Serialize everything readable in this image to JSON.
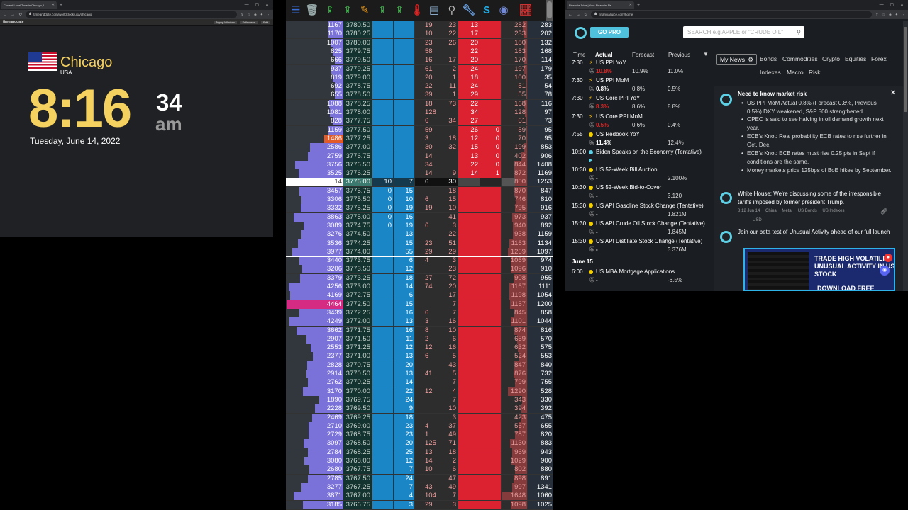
{
  "clock_window": {
    "tab_title": "Current Local Time in Chicago, U",
    "url": "timeanddate.com/worldclock/usa/chicago",
    "site": "timeanddate",
    "toolbar_buttons": [
      "Popup Window",
      "Fullscreen",
      "Edit"
    ],
    "city": "Chicago",
    "country": "USA",
    "time_hm": "8:16",
    "time_s": "34",
    "ampm": "am",
    "date": "Tuesday, June 14, 2022"
  },
  "ladder": {
    "toolbar_icons": [
      "db-icon",
      "trash-icon",
      "export-icon",
      "export-icon",
      "pen-icon",
      "export-icon",
      "export-icon",
      "thermometer-icon",
      "doc-icon",
      "tag-icon",
      "wrench-icon",
      "s-icon",
      "discord-icon",
      "chart-icon"
    ],
    "rows": [
      {
        "sell": "1167",
        "price": "3780.50",
        "b1": "",
        "b2": "",
        "buy": "19",
        "s_buy": "23",
        "s1": "13",
        "s2": "",
        "vol": "282",
        "tot": "283"
      },
      {
        "sell": "1170",
        "price": "3780.25",
        "b1": "",
        "b2": "",
        "buy": "10",
        "s_buy": "22",
        "s1": "17",
        "s2": "",
        "vol": "233",
        "tot": "202"
      },
      {
        "sell": "1007",
        "price": "3780.00",
        "b1": "",
        "b2": "",
        "buy": "23",
        "s_buy": "26",
        "s1": "20",
        "s2": "",
        "vol": "180",
        "tot": "132"
      },
      {
        "sell": "825",
        "price": "3779.75",
        "b1": "",
        "b2": "",
        "buy": "58",
        "s_buy": "",
        "s1": "22",
        "s2": "",
        "vol": "183",
        "tot": "168"
      },
      {
        "sell": "666",
        "price": "3779.50",
        "b1": "",
        "b2": "",
        "buy": "16",
        "s_buy": "17",
        "s1": "20",
        "s2": "",
        "vol": "170",
        "tot": "114"
      },
      {
        "sell": "937",
        "price": "3779.25",
        "b1": "",
        "b2": "",
        "buy": "61",
        "s_buy": "2",
        "s1": "24",
        "s2": "",
        "vol": "197",
        "tot": "179"
      },
      {
        "sell": "819",
        "price": "3779.00",
        "b1": "",
        "b2": "",
        "buy": "20",
        "s_buy": "1",
        "s1": "18",
        "s2": "",
        "vol": "100",
        "tot": "35"
      },
      {
        "sell": "692",
        "price": "3778.75",
        "b1": "",
        "b2": "",
        "buy": "22",
        "s_buy": "11",
        "s1": "24",
        "s2": "",
        "vol": "51",
        "tot": "54"
      },
      {
        "sell": "655",
        "price": "3778.50",
        "b1": "",
        "b2": "",
        "buy": "39",
        "s_buy": "1",
        "s1": "29",
        "s2": "",
        "vol": "55",
        "tot": "78"
      },
      {
        "sell": "1088",
        "price": "3778.25",
        "b1": "",
        "b2": "",
        "buy": "18",
        "s_buy": "73",
        "s1": "22",
        "s2": "",
        "vol": "168",
        "tot": "116"
      },
      {
        "sell": "1081",
        "price": "3778.00",
        "b1": "",
        "b2": "",
        "buy": "128",
        "s_buy": "",
        "s1": "34",
        "s2": "",
        "vol": "128",
        "tot": "97"
      },
      {
        "sell": "828",
        "price": "3777.75",
        "b1": "",
        "b2": "",
        "buy": "6",
        "s_buy": "34",
        "s1": "27",
        "s2": "",
        "vol": "61",
        "tot": "73"
      },
      {
        "sell": "1159",
        "price": "3777.50",
        "b1": "",
        "b2": "",
        "buy": "59",
        "s_buy": "",
        "s1": "26",
        "s2": "0",
        "vol": "59",
        "tot": "95"
      },
      {
        "sell": "1486",
        "price": "3777.25",
        "b1": "",
        "b2": "",
        "buy": "3",
        "s_buy": "18",
        "s1": "12",
        "s2": "0",
        "vol": "70",
        "tot": "95"
      },
      {
        "sell": "2586",
        "price": "3777.00",
        "b1": "",
        "b2": "",
        "buy": "30",
        "s_buy": "32",
        "s1": "15",
        "s2": "0",
        "vol": "199",
        "tot": "853"
      },
      {
        "sell": "2759",
        "price": "3776.75",
        "b1": "",
        "b2": "",
        "buy": "14",
        "s_buy": "",
        "s1": "13",
        "s2": "0",
        "vol": "402",
        "tot": "906"
      },
      {
        "sell": "3756",
        "price": "3776.50",
        "b1": "",
        "b2": "",
        "buy": "34",
        "s_buy": "",
        "s1": "22",
        "s2": "0",
        "vol": "844",
        "tot": "1408"
      },
      {
        "sell": "3525",
        "price": "3776.25",
        "b1": "",
        "b2": "",
        "buy": "14",
        "s_buy": "9",
        "s1": "14",
        "s2": "1",
        "vol": "872",
        "tot": "1169"
      },
      {
        "sell": "14",
        "price": "3776.00",
        "b1": "10",
        "b2": "7",
        "buy": "6",
        "s_buy": "30",
        "s1": "",
        "s2": "",
        "vol": "800",
        "tot": "1253"
      },
      {
        "sell": "3457",
        "price": "3775.75",
        "b1": "0",
        "b2": "15",
        "buy": "",
        "s_buy": "18",
        "s1": "",
        "s2": "",
        "vol": "870",
        "tot": "847"
      },
      {
        "sell": "3306",
        "price": "3775.50",
        "b1": "0",
        "b2": "10",
        "buy": "6",
        "s_buy": "15",
        "s1": "",
        "s2": "",
        "vol": "746",
        "tot": "810"
      },
      {
        "sell": "3332",
        "price": "3775.25",
        "b1": "0",
        "b2": "19",
        "buy": "19",
        "s_buy": "10",
        "s1": "",
        "s2": "",
        "vol": "795",
        "tot": "916"
      },
      {
        "sell": "3863",
        "price": "3775.00",
        "b1": "0",
        "b2": "16",
        "buy": "",
        "s_buy": "41",
        "s1": "",
        "s2": "",
        "vol": "973",
        "tot": "937"
      },
      {
        "sell": "3089",
        "price": "3774.75",
        "b1": "0",
        "b2": "19",
        "buy": "6",
        "s_buy": "3",
        "s1": "",
        "s2": "",
        "vol": "940",
        "tot": "892"
      },
      {
        "sell": "3276",
        "price": "3774.50",
        "b1": "",
        "b2": "13",
        "buy": "",
        "s_buy": "22",
        "s1": "",
        "s2": "",
        "vol": "938",
        "tot": "1159"
      },
      {
        "sell": "3536",
        "price": "3774.25",
        "b1": "",
        "b2": "15",
        "buy": "23",
        "s_buy": "51",
        "s1": "",
        "s2": "",
        "vol": "1163",
        "tot": "1134"
      },
      {
        "sell": "3977",
        "price": "3774.00",
        "b1": "",
        "b2": "55",
        "buy": "29",
        "s_buy": "29",
        "s1": "",
        "s2": "",
        "vol": "1269",
        "tot": "1097"
      },
      {
        "sell": "3440",
        "price": "3773.75",
        "b1": "",
        "b2": "6",
        "buy": "4",
        "s_buy": "3",
        "s1": "",
        "s2": "",
        "vol": "1069",
        "tot": "974"
      },
      {
        "sell": "3206",
        "price": "3773.50",
        "b1": "",
        "b2": "12",
        "buy": "",
        "s_buy": "23",
        "s1": "",
        "s2": "",
        "vol": "1096",
        "tot": "910"
      },
      {
        "sell": "3379",
        "price": "3773.25",
        "b1": "",
        "b2": "18",
        "buy": "27",
        "s_buy": "72",
        "s1": "",
        "s2": "",
        "vol": "908",
        "tot": "955"
      },
      {
        "sell": "4256",
        "price": "3773.00",
        "b1": "",
        "b2": "14",
        "buy": "74",
        "s_buy": "20",
        "s1": "",
        "s2": "",
        "vol": "1167",
        "tot": "1111"
      },
      {
        "sell": "4169",
        "price": "3772.75",
        "b1": "",
        "b2": "6",
        "buy": "",
        "s_buy": "17",
        "s1": "",
        "s2": "",
        "vol": "1198",
        "tot": "1054"
      },
      {
        "sell": "4464",
        "price": "3772.50",
        "b1": "",
        "b2": "15",
        "buy": "",
        "s_buy": "7",
        "s1": "",
        "s2": "",
        "vol": "1157",
        "tot": "1200"
      },
      {
        "sell": "3439",
        "price": "3772.25",
        "b1": "",
        "b2": "16",
        "buy": "6",
        "s_buy": "7",
        "s1": "",
        "s2": "",
        "vol": "845",
        "tot": "858"
      },
      {
        "sell": "4249",
        "price": "3772.00",
        "b1": "",
        "b2": "13",
        "buy": "3",
        "s_buy": "16",
        "s1": "",
        "s2": "",
        "vol": "1101",
        "tot": "1044"
      },
      {
        "sell": "3662",
        "price": "3771.75",
        "b1": "",
        "b2": "16",
        "buy": "8",
        "s_buy": "10",
        "s1": "",
        "s2": "",
        "vol": "874",
        "tot": "816"
      },
      {
        "sell": "2907",
        "price": "3771.50",
        "b1": "",
        "b2": "11",
        "buy": "2",
        "s_buy": "6",
        "s1": "",
        "s2": "",
        "vol": "659",
        "tot": "570"
      },
      {
        "sell": "2553",
        "price": "3771.25",
        "b1": "",
        "b2": "12",
        "buy": "12",
        "s_buy": "16",
        "s1": "",
        "s2": "",
        "vol": "632",
        "tot": "575"
      },
      {
        "sell": "2377",
        "price": "3771.00",
        "b1": "",
        "b2": "13",
        "buy": "6",
        "s_buy": "5",
        "s1": "",
        "s2": "",
        "vol": "524",
        "tot": "553"
      },
      {
        "sell": "2828",
        "price": "3770.75",
        "b1": "",
        "b2": "20",
        "buy": "",
        "s_buy": "43",
        "s1": "",
        "s2": "",
        "vol": "847",
        "tot": "840"
      },
      {
        "sell": "2914",
        "price": "3770.50",
        "b1": "",
        "b2": "13",
        "buy": "41",
        "s_buy": "5",
        "s1": "",
        "s2": "",
        "vol": "876",
        "tot": "732"
      },
      {
        "sell": "2762",
        "price": "3770.25",
        "b1": "",
        "b2": "14",
        "buy": "",
        "s_buy": "7",
        "s1": "",
        "s2": "",
        "vol": "799",
        "tot": "755"
      },
      {
        "sell": "3170",
        "price": "3770.00",
        "b1": "",
        "b2": "22",
        "buy": "12",
        "s_buy": "4",
        "s1": "",
        "s2": "",
        "vol": "1290",
        "tot": "528"
      },
      {
        "sell": "1890",
        "price": "3769.75",
        "b1": "",
        "b2": "24",
        "buy": "",
        "s_buy": "7",
        "s1": "",
        "s2": "",
        "vol": "343",
        "tot": "330"
      },
      {
        "sell": "2228",
        "price": "3769.50",
        "b1": "",
        "b2": "9",
        "buy": "",
        "s_buy": "10",
        "s1": "",
        "s2": "",
        "vol": "394",
        "tot": "392"
      },
      {
        "sell": "2469",
        "price": "3769.25",
        "b1": "",
        "b2": "18",
        "buy": "",
        "s_buy": "3",
        "s1": "",
        "s2": "",
        "vol": "423",
        "tot": "475"
      },
      {
        "sell": "2710",
        "price": "3769.00",
        "b1": "",
        "b2": "23",
        "buy": "4",
        "s_buy": "37",
        "s1": "",
        "s2": "",
        "vol": "567",
        "tot": "655"
      },
      {
        "sell": "2729",
        "price": "3768.75",
        "b1": "",
        "b2": "23",
        "buy": "1",
        "s_buy": "49",
        "s1": "",
        "s2": "",
        "vol": "787",
        "tot": "820"
      },
      {
        "sell": "3097",
        "price": "3768.50",
        "b1": "",
        "b2": "20",
        "buy": "125",
        "s_buy": "71",
        "s1": "",
        "s2": "",
        "vol": "1130",
        "tot": "883"
      },
      {
        "sell": "2784",
        "price": "3768.25",
        "b1": "",
        "b2": "25",
        "buy": "13",
        "s_buy": "18",
        "s1": "",
        "s2": "",
        "vol": "969",
        "tot": "943"
      },
      {
        "sell": "3080",
        "price": "3768.00",
        "b1": "",
        "b2": "12",
        "buy": "14",
        "s_buy": "2",
        "s1": "",
        "s2": "",
        "vol": "1029",
        "tot": "900"
      },
      {
        "sell": "2680",
        "price": "3767.75",
        "b1": "",
        "b2": "7",
        "buy": "10",
        "s_buy": "6",
        "s1": "",
        "s2": "",
        "vol": "802",
        "tot": "880"
      },
      {
        "sell": "2785",
        "price": "3767.50",
        "b1": "",
        "b2": "24",
        "buy": "",
        "s_buy": "47",
        "s1": "",
        "s2": "",
        "vol": "898",
        "tot": "891"
      },
      {
        "sell": "3277",
        "price": "3767.25",
        "b1": "",
        "b2": "7",
        "buy": "43",
        "s_buy": "49",
        "s1": "",
        "s2": "",
        "vol": "997",
        "tot": "1341"
      },
      {
        "sell": "3871",
        "price": "3767.00",
        "b1": "",
        "b2": "4",
        "buy": "104",
        "s_buy": "7",
        "s1": "",
        "s2": "",
        "vol": "1648",
        "tot": "1060"
      },
      {
        "sell": "3185",
        "price": "3766.75",
        "b1": "",
        "b2": "3",
        "buy": "29",
        "s_buy": "3",
        "s1": "",
        "s2": "",
        "vol": "1098",
        "tot": "1025"
      }
    ]
  },
  "fj_window": {
    "tab_title": "FinancialJuice | Your Financial Ne",
    "url": "financialjuice.com/home",
    "gopro": "GO PRO",
    "search_placeholder": "SEARCH e.g APPLE or \"CRUDE OIL\"",
    "cal_headers": {
      "time": "Time",
      "actual": "Actual",
      "forecast": "Forecast",
      "previous": "Previous"
    },
    "events": [
      {
        "time": "7:30",
        "icon": "bolt",
        "name": "US PPI YoY",
        "actual": "10.8%",
        "actual_color": "#e02424",
        "forecast": "10.9%",
        "previous": "11.0%"
      },
      {
        "time": "7:30",
        "icon": "bolt",
        "name": "US PPI MoM",
        "actual": "0.8%",
        "actual_color": "#ffffff",
        "forecast": "0.8%",
        "previous": "0.5%"
      },
      {
        "time": "7:30",
        "icon": "bolt",
        "name": "US Core PPI YoY",
        "actual": "8.3%",
        "actual_color": "#e02424",
        "forecast": "8.6%",
        "previous": "8.8%"
      },
      {
        "time": "7:30",
        "icon": "bolt",
        "name": "US Core PPI MoM",
        "actual": "0.5%",
        "actual_color": "#e02424",
        "forecast": "0.6%",
        "previous": "0.4%"
      },
      {
        "time": "7:55",
        "icon": "yellow",
        "name": "US Redbook YoY",
        "actual": "11.4%",
        "actual_color": "#ffffff",
        "forecast": "",
        "previous": "12.4%"
      },
      {
        "time": "10:00",
        "icon": "blue",
        "name": "Biden Speaks on the Economy (Tentative)",
        "actual": "",
        "actual_color": "#ffffff",
        "forecast": "",
        "previous": ""
      },
      {
        "time": "10:30",
        "icon": "yellow",
        "name": "US 52-Week Bill Auction",
        "actual": "-",
        "actual_color": "#ffffff",
        "forecast": "",
        "previous": "2.100%"
      },
      {
        "time": "10:30",
        "icon": "yellow",
        "name": "US 52-Week Bid-to-Cover",
        "actual": "-",
        "actual_color": "#ffffff",
        "forecast": "",
        "previous": "3.120"
      },
      {
        "time": "15:30",
        "icon": "yellow",
        "name": "US API Gasoline Stock Change (Tentative)",
        "actual": "-",
        "actual_color": "#ffffff",
        "forecast": "",
        "previous": "1.821M"
      },
      {
        "time": "15:30",
        "icon": "yellow",
        "name": "US API Crude Oil Stock Change (Tentative)",
        "actual": "-",
        "actual_color": "#ffffff",
        "forecast": "",
        "previous": "1.845M"
      },
      {
        "time": "15:30",
        "icon": "yellow",
        "name": "US API Distillate Stock Change (Tentative)",
        "actual": "-",
        "actual_color": "#ffffff",
        "forecast": "",
        "previous": "3.376M"
      }
    ],
    "day2_label": "June 15",
    "events2": [
      {
        "time": "6:00",
        "icon": "yellow",
        "name": "US MBA Mortgage Applications",
        "actual": "-",
        "actual_color": "#ffffff",
        "forecast": "",
        "previous": "-6.5%"
      }
    ],
    "filters": {
      "mynews": "My News",
      "row1": [
        "Bonds",
        "Commodities",
        "Crypto",
        "Equities",
        "Forex"
      ],
      "row2": [
        "Indexes",
        "Macro",
        "Risk"
      ]
    },
    "news1": {
      "title": "Need to know market risk",
      "bullets": [
        "US PPI MoM Actual 0.8% (Forecast 0.8%, Previous 0.5%) DXY weakened, S&P 500 strengthened.",
        "OPEC is said to see halving in oil demand growth next year.",
        "ECB's Knot: Real probability ECB rates to rise further in Oct, Dec.",
        "ECB's Knot: ECB rates must rise 0.25 pts in Sept if conditions are the same.",
        "Money markets price 125bps of BoE hikes by September."
      ]
    },
    "news2": {
      "title": "White House: We're discussing some of the irresponsible tariffs imposed by former president Trump.",
      "meta": "8:12 Jun 14",
      "tags": [
        "China",
        "Metal",
        "US Bonds",
        "US Indexes"
      ],
      "tags2": [
        "USD"
      ]
    },
    "news3": {
      "title": "Join our beta test of Unusual Activity ahead of our full launch",
      "banner_head": "TRADE HIGH VOLATILITY UNUSUAL ACTIVITY IN US STOCK",
      "banner_cta": "DOWNLOAD FREE"
    },
    "colors": {
      "accent": "#5ed0e5",
      "gopro": "#4fc1dd",
      "bolt": "#f5b800",
      "yellow_dot": "#f5d000",
      "blue_dot": "#5ed0e5"
    }
  }
}
